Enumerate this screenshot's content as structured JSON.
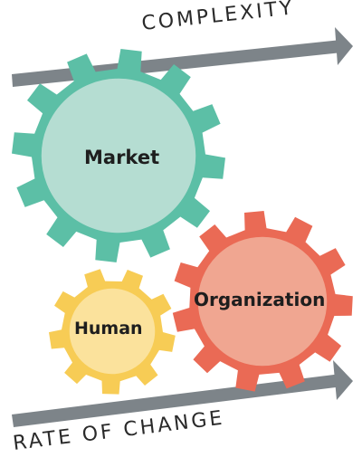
{
  "arrows": {
    "top_label": "COMPLEXITY",
    "bottom_label": "RATE OF CHANGE",
    "color": "#7d8489"
  },
  "gears": [
    {
      "key": "market",
      "label": "Market",
      "tooth_color": "#5cbfa6",
      "face_color": "#b5ddd2"
    },
    {
      "key": "organization",
      "label": "Organization",
      "tooth_color": "#ea6a55",
      "face_color": "#f0a691"
    },
    {
      "key": "human",
      "label": "Human",
      "tooth_color": "#f7cc55",
      "face_color": "#fbe29c"
    }
  ]
}
